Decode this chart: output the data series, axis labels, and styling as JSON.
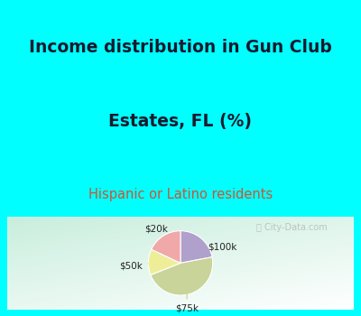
{
  "title_line1": "Income distribution in Gun Club",
  "title_line2": "Estates, FL (%)",
  "subtitle": "Hispanic or Latino residents",
  "slices": [
    {
      "label": "$100k",
      "value": 22,
      "color": "#b0a0cc"
    },
    {
      "label": "$75k",
      "value": 47,
      "color": "#c8d49a"
    },
    {
      "label": "$50k",
      "value": 13,
      "color": "#eeee99"
    },
    {
      "label": "$20k",
      "value": 18,
      "color": "#f0a8a8"
    }
  ],
  "bg_cyan": "#00ffff",
  "chart_bg": "#e0f0e8",
  "watermark": "City-Data.com",
  "title_color": "#1a1a2e",
  "subtitle_color": "#cc5533",
  "label_color": "#222222",
  "title_fontsize": 13.5,
  "subtitle_fontsize": 10.5
}
